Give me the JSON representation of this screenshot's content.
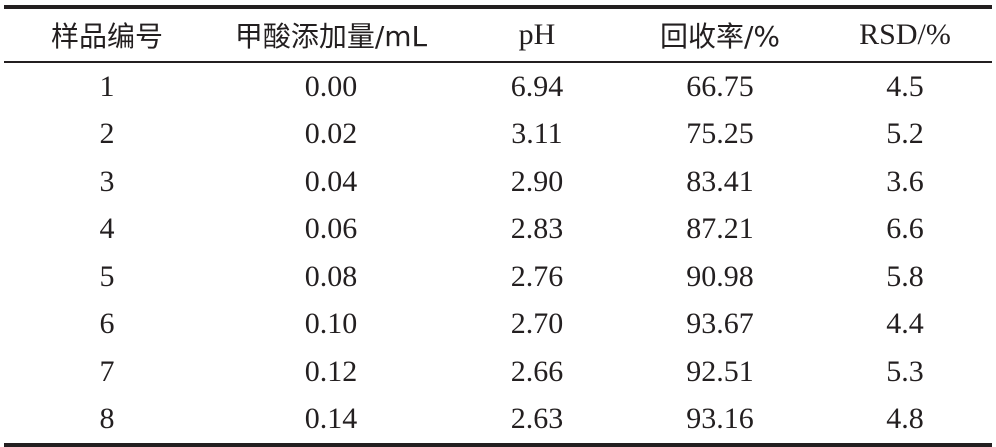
{
  "table": {
    "headers": [
      "样品编号",
      "甲酸添加量/mL",
      "pH",
      "回收率/%",
      "RSD/%"
    ],
    "rows": [
      [
        "1",
        "0.00",
        "6.94",
        "66.75",
        "4.5"
      ],
      [
        "2",
        "0.02",
        "3.11",
        "75.25",
        "5.2"
      ],
      [
        "3",
        "0.04",
        "2.90",
        "83.41",
        "3.6"
      ],
      [
        "4",
        "0.06",
        "2.83",
        "87.21",
        "6.6"
      ],
      [
        "5",
        "0.08",
        "2.76",
        "90.98",
        "5.8"
      ],
      [
        "6",
        "0.10",
        "2.70",
        "93.67",
        "4.4"
      ],
      [
        "7",
        "0.12",
        "2.66",
        "92.51",
        "5.3"
      ],
      [
        "8",
        "0.14",
        "2.63",
        "93.16",
        "4.8"
      ]
    ]
  }
}
